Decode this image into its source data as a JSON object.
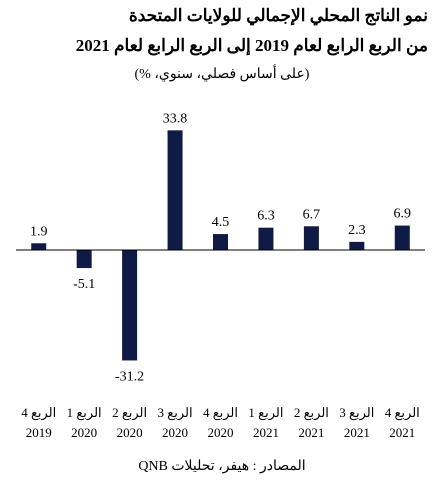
{
  "chart_data": {
    "type": "bar",
    "title": "نمو الناتج المحلي الإجمالي للولايات المتحدة",
    "subtitle": "من الربع الرابع لعام 2019 إلى الربع الرابع لعام 2021",
    "ylabel": "(على أساس فصلي، سنوي، %)",
    "xlabel": "",
    "categories": [
      [
        "الربع 4",
        "2019"
      ],
      [
        "الربع 1",
        "2020"
      ],
      [
        "الربع 2",
        "2020"
      ],
      [
        "الربع 3",
        "2020"
      ],
      [
        "الربع 4",
        "2020"
      ],
      [
        "الربع 1",
        "2021"
      ],
      [
        "الربع 2",
        "2021"
      ],
      [
        "الربع 3",
        "2021"
      ],
      [
        "الربع 4",
        "2021"
      ]
    ],
    "values": [
      1.9,
      -5.1,
      -31.2,
      33.8,
      4.5,
      6.3,
      6.7,
      2.3,
      6.9
    ],
    "value_labels": [
      "1.9",
      "-5.1",
      "-31.2",
      "33.8",
      "4.5",
      "6.3",
      "6.7",
      "2.3",
      "6.9"
    ],
    "ylim": [
      -31.2,
      33.8
    ],
    "grid": false,
    "bar_color": "#0f1b45",
    "source": "المصادر : هيفر، تحليلات QNB"
  }
}
